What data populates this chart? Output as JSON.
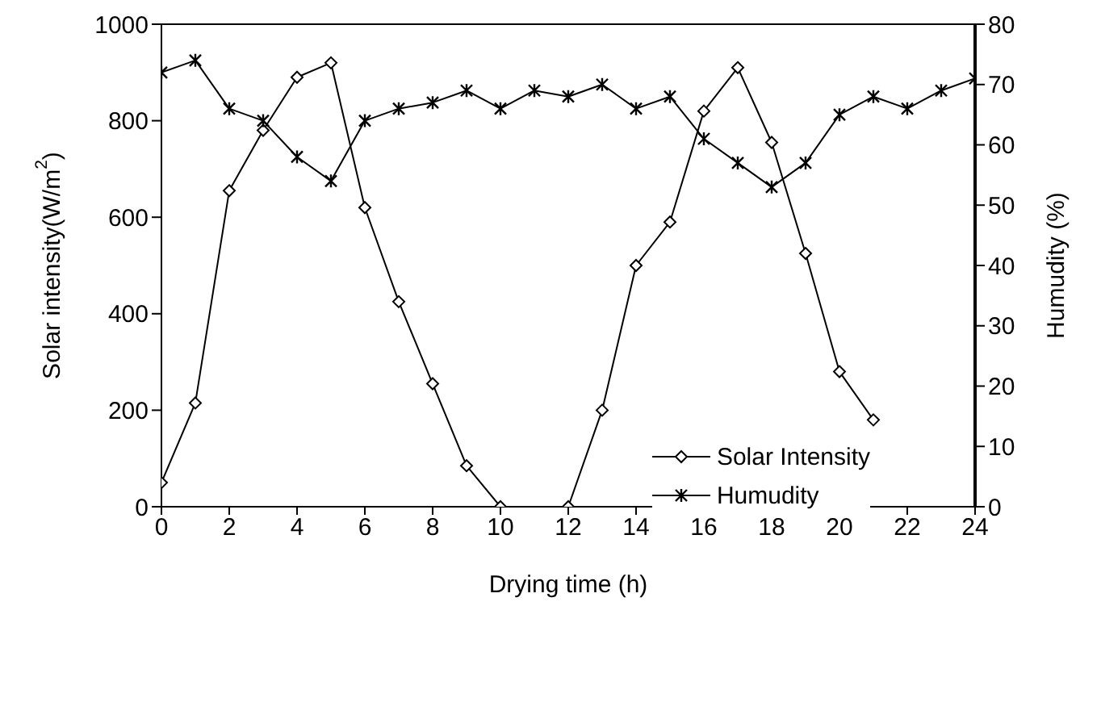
{
  "chart_data": {
    "type": "line",
    "xlabel": "Drying time (h)",
    "ylabel": "Solar intensity(W/m$^{2}$)",
    "y2label": "Humudity (%)",
    "xlim": [
      0,
      24
    ],
    "xticks": [
      0,
      2,
      4,
      6,
      8,
      10,
      12,
      14,
      16,
      18,
      20,
      22,
      24
    ],
    "ylim": [
      0,
      1000
    ],
    "yticks": [
      0,
      200,
      400,
      600,
      800,
      1000
    ],
    "y2lim": [
      0,
      80
    ],
    "y2ticks": [
      0,
      10,
      20,
      30,
      40,
      50,
      60,
      70,
      80
    ],
    "legend": "bottom right",
    "line_style": "solid",
    "series": [
      {
        "name": "Solar Intensity",
        "color": "#000000",
        "marker": "diamond",
        "x": [
          0,
          1,
          2,
          3,
          4,
          5,
          6,
          7,
          8,
          9,
          10,
          12,
          13,
          14,
          15,
          16,
          17,
          18,
          19,
          20,
          21
        ],
        "values": [
          50,
          215,
          655,
          780,
          890,
          920,
          620,
          425,
          255,
          85,
          0,
          0,
          200,
          500,
          590,
          820,
          910,
          755,
          525,
          280,
          180
        ]
      },
      {
        "name": "Humudity",
        "color": "#000000",
        "marker": "cross",
        "axis": "y2",
        "x": [
          0,
          1,
          2,
          3,
          4,
          5,
          6,
          7,
          8,
          9,
          10,
          11,
          12,
          13,
          14,
          15,
          16,
          17,
          18,
          19,
          20,
          21,
          22,
          23,
          24
        ],
        "values": [
          72,
          74,
          66,
          64,
          58,
          54,
          64,
          66,
          67,
          69,
          66,
          69,
          68,
          70,
          66,
          68,
          61,
          57,
          53,
          57,
          65,
          68,
          66,
          69,
          71
        ]
      }
    ]
  }
}
